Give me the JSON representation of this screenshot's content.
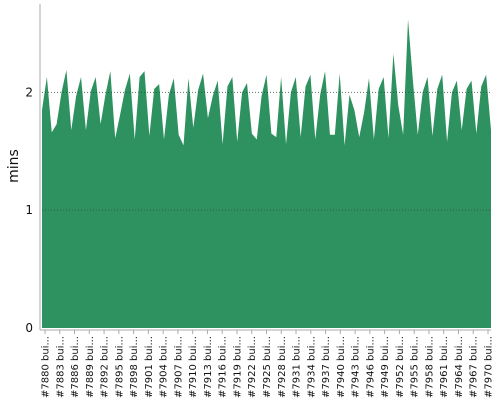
{
  "chart_data": {
    "type": "area",
    "ylabel": "mins",
    "ylim": [
      0,
      2.75
    ],
    "y_ticks": [
      0,
      1,
      2
    ],
    "grid": true,
    "fill_color": "#2e9160",
    "grid_color": "#2f4f3a",
    "x_tick_labels": [
      "#7880 bui...",
      "#7883 bui...",
      "#7886 bui...",
      "#7889 bui...",
      "#7892 bui...",
      "#7895 bui...",
      "#7898 bui...",
      "#7901 bui...",
      "#7904 bui...",
      "#7907 bui...",
      "#7910 bui...",
      "#7913 bui...",
      "#7916 bui...",
      "#7919 bui...",
      "#7922 bui...",
      "#7925 bui...",
      "#7928 bui...",
      "#7931 bui...",
      "#7934 bui...",
      "#7937 bui...",
      "#7940 bui...",
      "#7943 bui...",
      "#7946 bui...",
      "#7949 bui...",
      "#7952 bui...",
      "#7955 bui...",
      "#7958 bui...",
      "#7961 bui...",
      "#7964 bui...",
      "#7967 bui...",
      "#7970 bui..."
    ],
    "values": [
      1.85,
      2.13,
      1.66,
      1.73,
      2.0,
      2.19,
      1.68,
      1.97,
      2.13,
      1.68,
      2.01,
      2.13,
      1.73,
      1.98,
      2.18,
      1.61,
      1.81,
      2.02,
      2.16,
      1.6,
      2.13,
      2.18,
      1.63,
      2.03,
      2.07,
      1.6,
      1.98,
      2.12,
      1.64,
      1.55,
      2.12,
      1.7,
      2.02,
      2.16,
      1.78,
      1.97,
      2.1,
      1.56,
      2.05,
      2.13,
      1.58,
      2.0,
      2.08,
      1.65,
      1.6,
      1.97,
      2.15,
      1.65,
      1.62,
      2.13,
      1.56,
      2.0,
      2.13,
      1.62,
      2.05,
      2.15,
      1.6,
      1.98,
      2.18,
      1.64,
      1.64,
      2.16,
      1.55,
      1.98,
      1.85,
      1.62,
      1.83,
      2.12,
      1.6,
      2.03,
      2.13,
      1.61,
      2.33,
      1.89,
      1.64,
      2.62,
      2.1,
      1.64,
      2.0,
      2.13,
      1.63,
      2.03,
      2.15,
      1.58,
      2.0,
      2.1,
      1.68,
      2.03,
      2.1,
      1.65,
      2.05,
      2.15,
      1.68
    ]
  }
}
